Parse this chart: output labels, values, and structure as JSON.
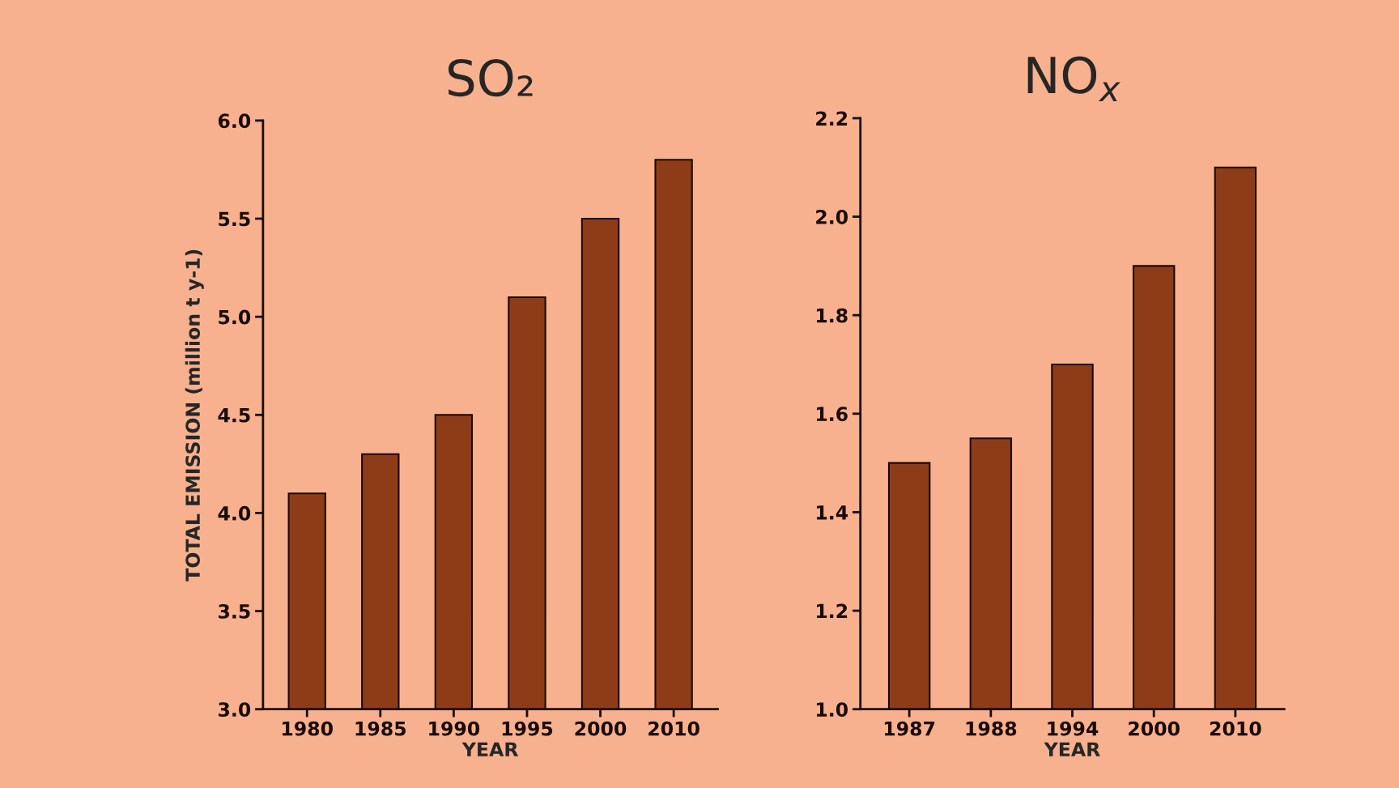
{
  "chart_data": [
    {
      "type": "bar",
      "title": "SO₂",
      "xlabel": "YEAR",
      "ylabel": "TOTAL EMISSION (million t y-1)",
      "categories": [
        "1980",
        "1985",
        "1990",
        "1995",
        "2000",
        "2010"
      ],
      "values": [
        4.1,
        4.3,
        4.5,
        5.1,
        5.5,
        5.8
      ],
      "color": "#8e3c18",
      "ylim": [
        3.0,
        6.0
      ],
      "yticks": [
        {
          "value": 3,
          "label": "3.0"
        },
        3.5,
        {
          "value": 4,
          "label": "4.0"
        },
        4.5,
        {
          "value": 5,
          "label": "5.0"
        },
        5.5,
        {
          "value": 6,
          "label": "6.0"
        }
      ],
      "grid": false
    },
    {
      "type": "bar",
      "title": "NO$_{x}$",
      "xlabel": "YEAR",
      "categories": [
        "1987",
        "1988",
        "1994",
        "2000",
        "2010"
      ],
      "values": [
        1.5,
        1.55,
        1.7,
        1.9,
        2.1
      ],
      "color": "#8e3c18",
      "ylim": [
        1.0,
        2.2
      ],
      "yticks": [
        {
          "value": 1,
          "label": "1.0"
        },
        1.2,
        1.4,
        1.6,
        1.8,
        {
          "value": 2,
          "label": "2.0"
        },
        2.2
      ],
      "grid": false
    }
  ]
}
